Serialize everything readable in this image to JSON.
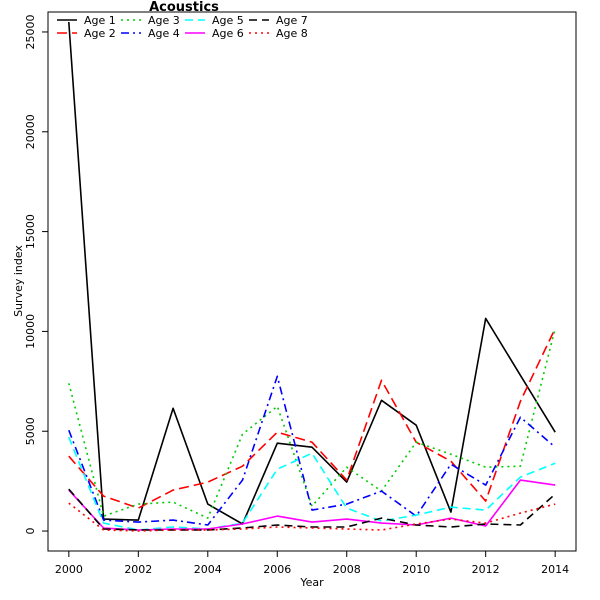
{
  "chart_data": {
    "type": "line",
    "title": "Acoustics",
    "xlabel": "Year",
    "ylabel": "Survey index",
    "x": [
      2000,
      2001,
      2002,
      2003,
      2004,
      2005,
      2006,
      2007,
      2008,
      2009,
      2010,
      2011,
      2012,
      2013,
      2014
    ],
    "xticks": [
      2000,
      2002,
      2004,
      2006,
      2008,
      2010,
      2012,
      2014
    ],
    "yticks": [
      0,
      5000,
      10000,
      15000,
      20000,
      25000
    ],
    "xlim": [
      1999.4,
      2014.6
    ],
    "ylim": [
      -1000,
      26000
    ],
    "grid": false,
    "legend_position": "top-left",
    "series": [
      {
        "name": "Age 1",
        "color": "#000000",
        "dash": "solid",
        "values": [
          25500,
          600,
          550,
          6150,
          1350,
          350,
          4400,
          4200,
          2450,
          6550,
          5300,
          950,
          10650,
          7800,
          4950
        ]
      },
      {
        "name": "Age 2",
        "color": "#ff0000",
        "dash": "longdash",
        "values": [
          3750,
          1750,
          1150,
          2050,
          2450,
          3250,
          4950,
          4450,
          2550,
          7550,
          4450,
          3500,
          1500,
          6500,
          10150
        ]
      },
      {
        "name": "Age 3",
        "color": "#00cd00",
        "dash": "dotted",
        "values": [
          7400,
          750,
          1350,
          1450,
          650,
          4850,
          6250,
          1250,
          3200,
          2000,
          4450,
          3850,
          3200,
          3250,
          10150
        ]
      },
      {
        "name": "Age 4",
        "color": "#0000ff",
        "dash": "dotdash",
        "values": [
          5050,
          550,
          450,
          550,
          300,
          2550,
          7750,
          1050,
          1350,
          2000,
          750,
          3350,
          2300,
          5700,
          4200
        ]
      },
      {
        "name": "Age 5",
        "color": "#00ffff",
        "dash": "dashed",
        "values": [
          4700,
          400,
          50,
          200,
          100,
          400,
          3100,
          3900,
          1150,
          500,
          800,
          1200,
          1050,
          2700,
          3400
        ]
      },
      {
        "name": "Age 6",
        "color": "#ff00ff",
        "dash": "solid",
        "values": [
          2050,
          150,
          50,
          100,
          100,
          350,
          750,
          450,
          600,
          400,
          300,
          650,
          250,
          2550,
          2300
        ]
      },
      {
        "name": "Age 7",
        "color": "#000000",
        "dash": "dashed",
        "values": [
          2100,
          100,
          50,
          50,
          50,
          150,
          300,
          200,
          200,
          650,
          300,
          200,
          350,
          300,
          1850
        ]
      },
      {
        "name": "Age 8",
        "color": "#ff0000",
        "dash": "dotted",
        "values": [
          1400,
          50,
          0,
          50,
          50,
          100,
          200,
          150,
          100,
          50,
          350,
          600,
          400,
          900,
          1350
        ]
      }
    ]
  }
}
